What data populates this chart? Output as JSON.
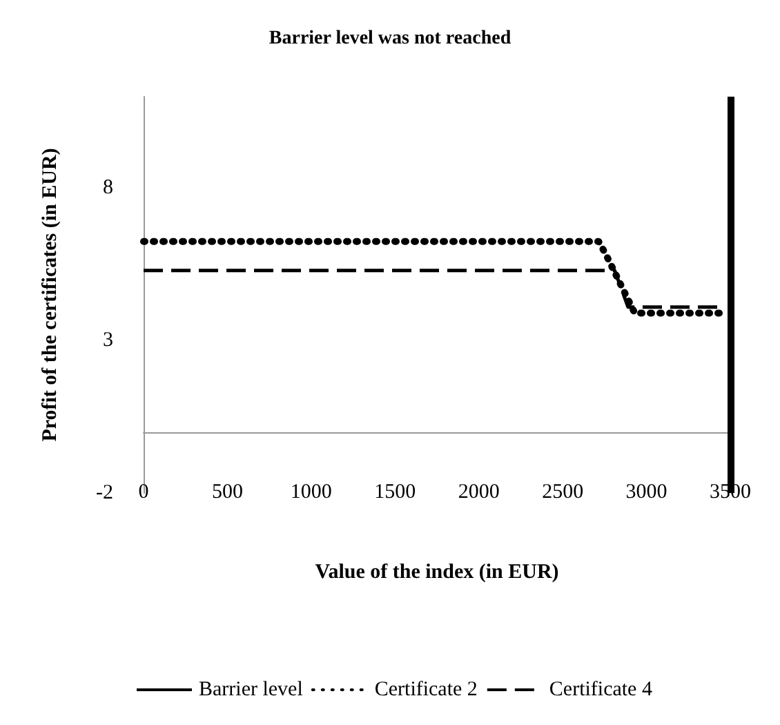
{
  "chart_data": {
    "type": "line",
    "title": "Barrier level was not reached",
    "xlabel": "Value of the index (in EUR)",
    "ylabel": "Profit of the certificates (in EUR)",
    "xlim": [
      0,
      3500
    ],
    "xticks": [
      0,
      500,
      1000,
      1500,
      2000,
      2500,
      3000,
      3500
    ],
    "ylim": [
      -2,
      11
    ],
    "yticks": [
      -2,
      3,
      8
    ],
    "grid": false,
    "legend": "bottom",
    "marker": "none",
    "ref_lines": [
      {
        "axis": "x",
        "value": 3500,
        "label": "Barrier level",
        "color": "#000000",
        "line_style": "solid"
      }
    ],
    "series": [
      {
        "name": "Certificate 2",
        "color": "#000000",
        "line_style": "dotted",
        "x": [
          0,
          2715,
          2760,
          2930,
          3450
        ],
        "values": [
          6.25,
          6.25,
          5.8,
          3.9,
          3.9
        ]
      },
      {
        "name": "Certificate 4",
        "color": "#000000",
        "line_style": "dashed",
        "x": [
          0,
          2810,
          2890,
          3450
        ],
        "values": [
          5.3,
          5.3,
          4.1,
          4.1
        ]
      }
    ]
  }
}
